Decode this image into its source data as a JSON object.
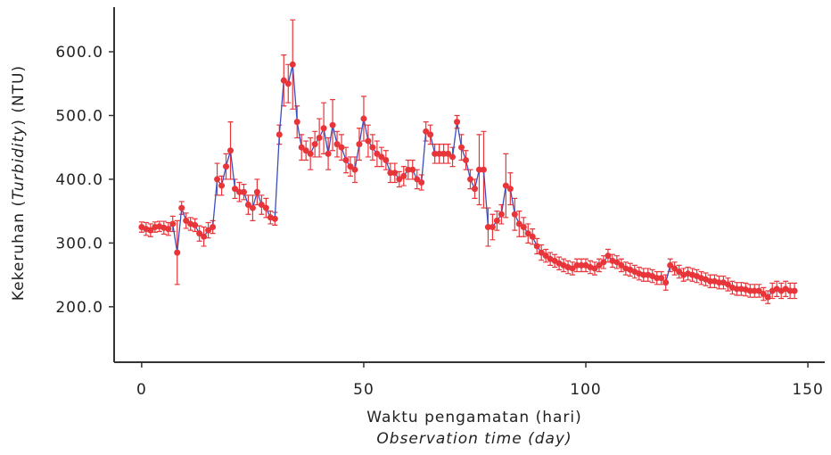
{
  "chart_data": {
    "type": "errorbar",
    "ylabel": [
      "Kekeruhan (",
      "Turbidity",
      ") (NTU)"
    ],
    "xlabel": "Waktu pengamatan (hari)",
    "xlabel_en": [
      "Observation time (",
      "day",
      ")"
    ],
    "xlim": [
      -6.2,
      153.8
    ],
    "xticks": [
      0,
      50,
      100,
      150
    ],
    "ylim": [
      113,
      670
    ],
    "yticks": [
      {
        "value": 200,
        "label": "200.0"
      },
      {
        "value": 300,
        "label": "300.0"
      },
      {
        "value": 400,
        "label": "400.0"
      },
      {
        "value": 500,
        "label": "500.0"
      },
      {
        "value": 600,
        "label": "600.0"
      }
    ],
    "x": [
      0,
      1,
      2,
      3,
      4,
      5,
      6,
      7,
      8,
      9,
      10,
      11,
      12,
      13,
      14,
      15,
      16,
      17,
      18,
      19,
      20,
      21,
      22,
      23,
      24,
      25,
      26,
      27,
      28,
      29,
      30,
      31,
      32,
      33,
      34,
      35,
      36,
      37,
      38,
      39,
      40,
      41,
      42,
      43,
      44,
      45,
      46,
      47,
      48,
      49,
      50,
      51,
      52,
      53,
      54,
      55,
      56,
      57,
      58,
      59,
      60,
      61,
      62,
      63,
      64,
      65,
      66,
      67,
      68,
      69,
      70,
      71,
      72,
      73,
      74,
      75,
      76,
      77,
      78,
      79,
      80,
      81,
      82,
      83,
      84,
      85,
      86,
      87,
      88,
      89,
      90,
      91,
      92,
      93,
      94,
      95,
      96,
      97,
      98,
      99,
      100,
      101,
      102,
      103,
      104,
      105,
      106,
      107,
      108,
      109,
      110,
      111,
      112,
      113,
      114,
      115,
      116,
      117,
      118,
      119,
      120,
      121,
      122,
      123,
      124,
      125,
      126,
      127,
      128,
      129,
      130,
      131,
      132,
      133,
      134,
      135,
      136,
      137,
      138,
      139,
      140,
      141,
      142,
      143,
      144,
      145,
      146,
      147
    ],
    "series": [
      {
        "color": "#e8353a",
        "line_color": "#3a4fc0",
        "values": [
          325,
          322,
          320,
          325,
          326,
          324,
          322,
          330,
          285,
          355,
          335,
          330,
          328,
          315,
          310,
          320,
          325,
          400,
          390,
          420,
          445,
          385,
          380,
          380,
          360,
          355,
          380,
          360,
          355,
          340,
          338,
          470,
          555,
          550,
          580,
          490,
          450,
          445,
          440,
          455,
          465,
          480,
          440,
          485,
          455,
          450,
          430,
          420,
          415,
          455,
          495,
          460,
          450,
          440,
          435,
          430,
          410,
          410,
          400,
          405,
          415,
          415,
          400,
          395,
          475,
          470,
          440,
          440,
          440,
          440,
          435,
          490,
          450,
          430,
          400,
          385,
          415,
          415,
          325,
          325,
          335,
          345,
          390,
          385,
          345,
          330,
          325,
          315,
          310,
          295,
          285,
          280,
          275,
          272,
          268,
          265,
          262,
          260,
          265,
          265,
          265,
          262,
          260,
          265,
          270,
          280,
          272,
          270,
          265,
          260,
          258,
          255,
          252,
          250,
          250,
          248,
          245,
          245,
          238,
          265,
          260,
          255,
          250,
          252,
          250,
          248,
          245,
          243,
          240,
          240,
          238,
          238,
          235,
          230,
          228,
          228,
          227,
          225,
          225,
          225,
          220,
          215,
          225,
          228,
          225,
          228,
          225,
          225
        ],
        "errors": [
          8,
          10,
          10,
          8,
          8,
          10,
          10,
          12,
          50,
          10,
          12,
          10,
          10,
          12,
          15,
          12,
          10,
          25,
          15,
          20,
          45,
          15,
          15,
          12,
          15,
          20,
          20,
          15,
          15,
          10,
          10,
          15,
          40,
          30,
          70,
          25,
          20,
          15,
          25,
          20,
          30,
          40,
          25,
          40,
          20,
          20,
          20,
          15,
          20,
          25,
          35,
          25,
          20,
          20,
          15,
          15,
          15,
          15,
          12,
          15,
          15,
          15,
          15,
          12,
          15,
          15,
          15,
          15,
          15,
          15,
          15,
          10,
          20,
          15,
          15,
          15,
          55,
          60,
          30,
          20,
          15,
          15,
          50,
          25,
          25,
          20,
          15,
          15,
          12,
          12,
          12,
          10,
          10,
          10,
          10,
          10,
          10,
          10,
          10,
          10,
          10,
          10,
          10,
          10,
          10,
          10,
          10,
          10,
          10,
          10,
          10,
          10,
          10,
          10,
          10,
          10,
          10,
          10,
          12,
          10,
          10,
          10,
          10,
          10,
          10,
          10,
          10,
          10,
          10,
          10,
          10,
          10,
          10,
          10,
          10,
          10,
          10,
          10,
          10,
          10,
          10,
          10,
          12,
          12,
          12,
          12,
          12,
          12
        ]
      }
    ]
  }
}
